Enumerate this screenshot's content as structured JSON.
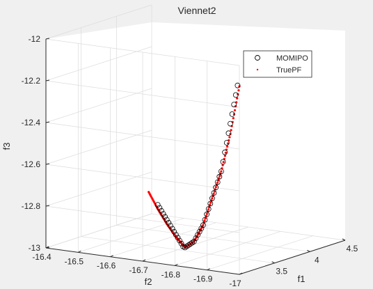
{
  "chart_data": {
    "type": "scatter",
    "projection": "3d",
    "title": "Viennet2",
    "xlabel": "f1",
    "ylabel": "f2",
    "zlabel": "f3",
    "zlim": [
      -13,
      -12
    ],
    "grid": true,
    "legend_position": "top-right",
    "f1_ticks": [
      "3.5",
      "4",
      "4.5"
    ],
    "f2_ticks": [
      "-16.4",
      "-16.5",
      "-16.6",
      "-16.7",
      "-16.8",
      "-16.9",
      "-17"
    ],
    "f3_ticks": [
      "-12",
      "-12.2",
      "-12.4",
      "-12.6",
      "-12.8",
      "-13"
    ],
    "colors": {
      "momipo": "#000000",
      "truepf": "#ff0000",
      "grid": "#dcdcdc",
      "axis": "#262626"
    },
    "series": [
      {
        "name": "MOMIPO",
        "marker": "circle-open",
        "description_points": "sampled along front",
        "f1": [
          3.02,
          3.04,
          3.06,
          3.08,
          3.1,
          3.12,
          3.14,
          3.16,
          3.18,
          3.2,
          3.22,
          3.24,
          3.26,
          3.28,
          3.3,
          3.32,
          3.34,
          3.36,
          3.38,
          3.4,
          3.42,
          3.44,
          3.46,
          3.48,
          3.5,
          3.52,
          3.54,
          3.56,
          3.58,
          3.6,
          3.62,
          3.64,
          3.66,
          3.68,
          3.7,
          3.72,
          3.74,
          3.76,
          3.78,
          3.8,
          3.82,
          3.84,
          3.86,
          3.88,
          3.9
        ],
        "f2": [
          -16.99,
          -16.98,
          -16.97,
          -16.96,
          -16.95,
          -16.94,
          -16.93,
          -16.92,
          -16.91,
          -16.9,
          -16.89,
          -16.88,
          -16.87,
          -16.86,
          -16.85,
          -16.84,
          -16.83,
          -16.82,
          -16.81,
          -16.8,
          -16.79,
          -16.78,
          -16.77,
          -16.76,
          -16.75,
          -16.74,
          -16.73,
          -16.72,
          -16.71,
          -16.7,
          -16.69,
          -16.68,
          -16.67,
          -16.66,
          -16.65,
          -16.64,
          -16.63,
          -16.62,
          -16.61,
          -16.6,
          -16.59,
          -16.58,
          -16.57,
          -16.56,
          -16.55
        ],
        "f3": [
          -12.1,
          -12.15,
          -12.2,
          -12.25,
          -12.3,
          -12.35,
          -12.4,
          -12.45,
          -12.5,
          -12.55,
          -12.58,
          -12.61,
          -12.64,
          -12.67,
          -12.7,
          -12.73,
          -12.76,
          -12.79,
          -12.82,
          -12.85,
          -12.87,
          -12.89,
          -12.91,
          -12.93,
          -12.95,
          -12.96,
          -12.97,
          -12.98,
          -12.99,
          -13.0,
          -13.0,
          -12.99,
          -12.98,
          -12.97,
          -12.96,
          -12.95,
          -12.94,
          -12.93,
          -12.92,
          -12.91,
          -12.9,
          -12.89,
          -12.88,
          -12.87,
          -12.86
        ]
      },
      {
        "name": "TruePF",
        "marker": "point",
        "f1": [
          3.0,
          3.1,
          3.2,
          3.3,
          3.4,
          3.5,
          3.6,
          3.7,
          3.8,
          3.9,
          4.0
        ],
        "f2": [
          -17.0,
          -16.95,
          -16.9,
          -16.85,
          -16.8,
          -16.75,
          -16.7,
          -16.65,
          -16.6,
          -16.55,
          -16.5
        ],
        "f3": [
          -12.1,
          -12.35,
          -12.55,
          -12.7,
          -12.85,
          -12.95,
          -13.0,
          -12.97,
          -12.93,
          -12.88,
          -12.82
        ]
      }
    ]
  }
}
